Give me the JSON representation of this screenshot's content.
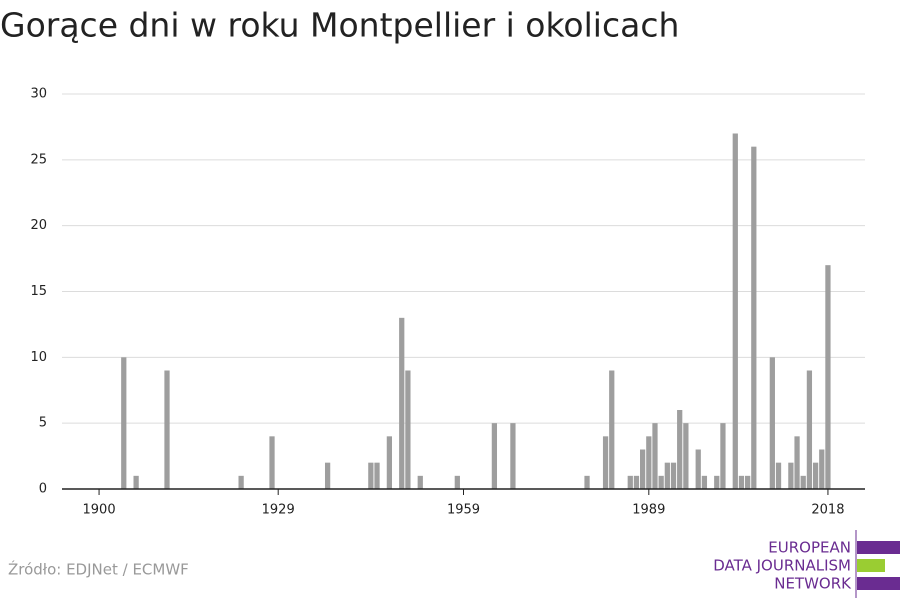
{
  "chart_data": {
    "type": "bar",
    "title": "Gorące dni w roku Montpellier i okolicach",
    "x": [
      1900,
      1901,
      1902,
      1903,
      1904,
      1905,
      1906,
      1907,
      1908,
      1909,
      1910,
      1911,
      1912,
      1913,
      1914,
      1915,
      1916,
      1917,
      1918,
      1919,
      1920,
      1921,
      1922,
      1923,
      1924,
      1925,
      1926,
      1927,
      1928,
      1929,
      1930,
      1931,
      1932,
      1933,
      1934,
      1935,
      1936,
      1937,
      1938,
      1939,
      1940,
      1941,
      1942,
      1943,
      1944,
      1945,
      1946,
      1947,
      1948,
      1949,
      1950,
      1951,
      1952,
      1953,
      1954,
      1955,
      1956,
      1957,
      1958,
      1959,
      1960,
      1961,
      1962,
      1963,
      1964,
      1965,
      1966,
      1967,
      1968,
      1969,
      1970,
      1971,
      1972,
      1973,
      1974,
      1975,
      1976,
      1977,
      1978,
      1979,
      1980,
      1981,
      1982,
      1983,
      1984,
      1985,
      1986,
      1987,
      1988,
      1989,
      1990,
      1991,
      1992,
      1993,
      1994,
      1995,
      1996,
      1997,
      1998,
      1999,
      2000,
      2001,
      2002,
      2003,
      2004,
      2005,
      2006,
      2007,
      2008,
      2009,
      2010,
      2011,
      2012,
      2013,
      2014,
      2015,
      2016,
      2017,
      2018
    ],
    "values": [
      0,
      0,
      0,
      0,
      10,
      0,
      1,
      0,
      0,
      0,
      0,
      9,
      0,
      0,
      0,
      0,
      0,
      0,
      0,
      0,
      0,
      0,
      0,
      1,
      0,
      0,
      0,
      0,
      4,
      0,
      0,
      0,
      0,
      0,
      0,
      0,
      0,
      2,
      0,
      0,
      0,
      0,
      0,
      0,
      2,
      2,
      0,
      4,
      0,
      13,
      9,
      0,
      1,
      0,
      0,
      0,
      0,
      0,
      1,
      0,
      0,
      0,
      0,
      0,
      5,
      0,
      0,
      5,
      0,
      0,
      0,
      0,
      0,
      0,
      0,
      0,
      0,
      0,
      0,
      1,
      0,
      0,
      4,
      9,
      0,
      0,
      1,
      1,
      3,
      4,
      5,
      1,
      2,
      2,
      6,
      5,
      0,
      3,
      1,
      0,
      1,
      5,
      0,
      27,
      1,
      1,
      26,
      0,
      0,
      10,
      2,
      0,
      2,
      4,
      1,
      9,
      2,
      3,
      17
    ],
    "color": "#9e9e9e",
    "xlim": [
      1894,
      2024
    ],
    "xticks": [
      1900,
      1929,
      1959,
      1989,
      2018
    ],
    "ylim": [
      0,
      30
    ],
    "yticks": [
      0,
      5,
      10,
      15,
      20,
      25,
      30
    ],
    "grid": true
  },
  "source": "Źródło: EDJNet / ECMWF",
  "logo": {
    "lines": [
      "EUROPEAN",
      "DATA JOURNALISM",
      "NETWORK"
    ]
  }
}
